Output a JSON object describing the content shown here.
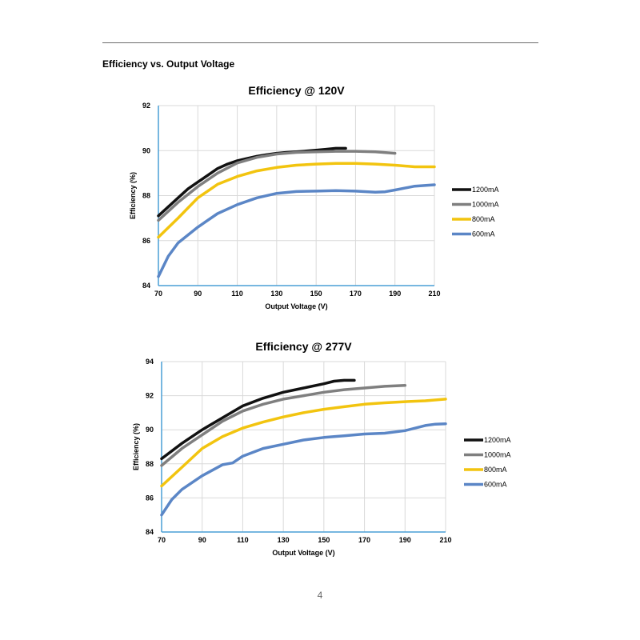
{
  "section_title": "Efficiency vs. Output Voltage",
  "page_number": "4",
  "chart_data": [
    {
      "type": "line",
      "title": "Efficiency @ 120V",
      "xlabel": "Output Voltage (V)",
      "ylabel": "Efficiency (%)",
      "xlim": [
        70,
        210
      ],
      "ylim": [
        84,
        92
      ],
      "xticks": [
        70,
        90,
        110,
        130,
        150,
        170,
        190,
        210
      ],
      "yticks": [
        84,
        86,
        88,
        90,
        92
      ],
      "grid": true,
      "legend_position": "right",
      "series": [
        {
          "name": "1200mA",
          "color": "#111111",
          "x": [
            70,
            75,
            80,
            85,
            90,
            95,
            100,
            105,
            110,
            115,
            120,
            125,
            130,
            135,
            140,
            145,
            150,
            155,
            160,
            165
          ],
          "y": [
            87.1,
            87.5,
            87.9,
            88.3,
            88.6,
            88.9,
            89.2,
            89.4,
            89.55,
            89.65,
            89.75,
            89.82,
            89.88,
            89.92,
            89.95,
            89.98,
            90.02,
            90.06,
            90.1,
            90.1
          ]
        },
        {
          "name": "1000mA",
          "color": "#7f7f7f",
          "x": [
            70,
            80,
            90,
            100,
            110,
            120,
            130,
            140,
            150,
            160,
            170,
            180,
            190
          ],
          "y": [
            86.9,
            87.7,
            88.4,
            89.0,
            89.45,
            89.7,
            89.85,
            89.92,
            89.95,
            89.97,
            89.97,
            89.95,
            89.88
          ]
        },
        {
          "name": "800mA",
          "color": "#f2c40f",
          "x": [
            70,
            80,
            90,
            100,
            110,
            120,
            130,
            140,
            150,
            160,
            170,
            180,
            190,
            200,
            210
          ],
          "y": [
            86.15,
            87.0,
            87.9,
            88.5,
            88.85,
            89.1,
            89.25,
            89.35,
            89.4,
            89.43,
            89.43,
            89.4,
            89.35,
            89.28,
            89.28
          ]
        },
        {
          "name": "600mA",
          "color": "#5b86c6",
          "x": [
            70,
            75,
            80,
            90,
            100,
            110,
            120,
            130,
            140,
            150,
            160,
            170,
            180,
            185,
            190,
            200,
            210
          ],
          "y": [
            84.4,
            85.3,
            85.9,
            86.6,
            87.2,
            87.6,
            87.9,
            88.1,
            88.18,
            88.2,
            88.22,
            88.2,
            88.15,
            88.17,
            88.25,
            88.42,
            88.48
          ]
        }
      ]
    },
    {
      "type": "line",
      "title": "Efficiency @ 277V",
      "xlabel": "Output Voltage (V)",
      "ylabel": "Efficiency (%)",
      "xlim": [
        70,
        210
      ],
      "ylim": [
        84,
        94
      ],
      "xticks": [
        70,
        90,
        110,
        130,
        150,
        170,
        190,
        210
      ],
      "yticks": [
        84,
        86,
        88,
        90,
        92,
        94
      ],
      "grid": true,
      "legend_position": "right",
      "series": [
        {
          "name": "1200mA",
          "color": "#111111",
          "x": [
            70,
            80,
            90,
            100,
            110,
            120,
            130,
            140,
            150,
            155,
            160,
            165
          ],
          "y": [
            88.3,
            89.2,
            90.0,
            90.7,
            91.4,
            91.85,
            92.2,
            92.45,
            92.7,
            92.85,
            92.9,
            92.9
          ]
        },
        {
          "name": "1000mA",
          "color": "#7f7f7f",
          "x": [
            70,
            80,
            90,
            100,
            110,
            120,
            130,
            140,
            150,
            160,
            170,
            180,
            190
          ],
          "y": [
            87.9,
            88.9,
            89.7,
            90.5,
            91.1,
            91.5,
            91.8,
            92.0,
            92.2,
            92.35,
            92.45,
            92.55,
            92.6
          ]
        },
        {
          "name": "800mA",
          "color": "#f2c40f",
          "x": [
            70,
            80,
            90,
            100,
            110,
            120,
            130,
            140,
            150,
            160,
            170,
            180,
            190,
            200,
            210
          ],
          "y": [
            86.7,
            87.8,
            88.9,
            89.6,
            90.1,
            90.45,
            90.75,
            91.0,
            91.2,
            91.35,
            91.5,
            91.58,
            91.65,
            91.7,
            91.8
          ]
        },
        {
          "name": "600mA",
          "color": "#5b86c6",
          "x": [
            70,
            75,
            80,
            90,
            100,
            105,
            110,
            120,
            130,
            140,
            150,
            160,
            170,
            180,
            190,
            200,
            205,
            210
          ],
          "y": [
            85.0,
            85.9,
            86.5,
            87.3,
            87.95,
            88.05,
            88.45,
            88.9,
            89.15,
            89.4,
            89.55,
            89.65,
            89.75,
            89.8,
            89.95,
            90.25,
            90.33,
            90.35
          ]
        }
      ]
    }
  ]
}
